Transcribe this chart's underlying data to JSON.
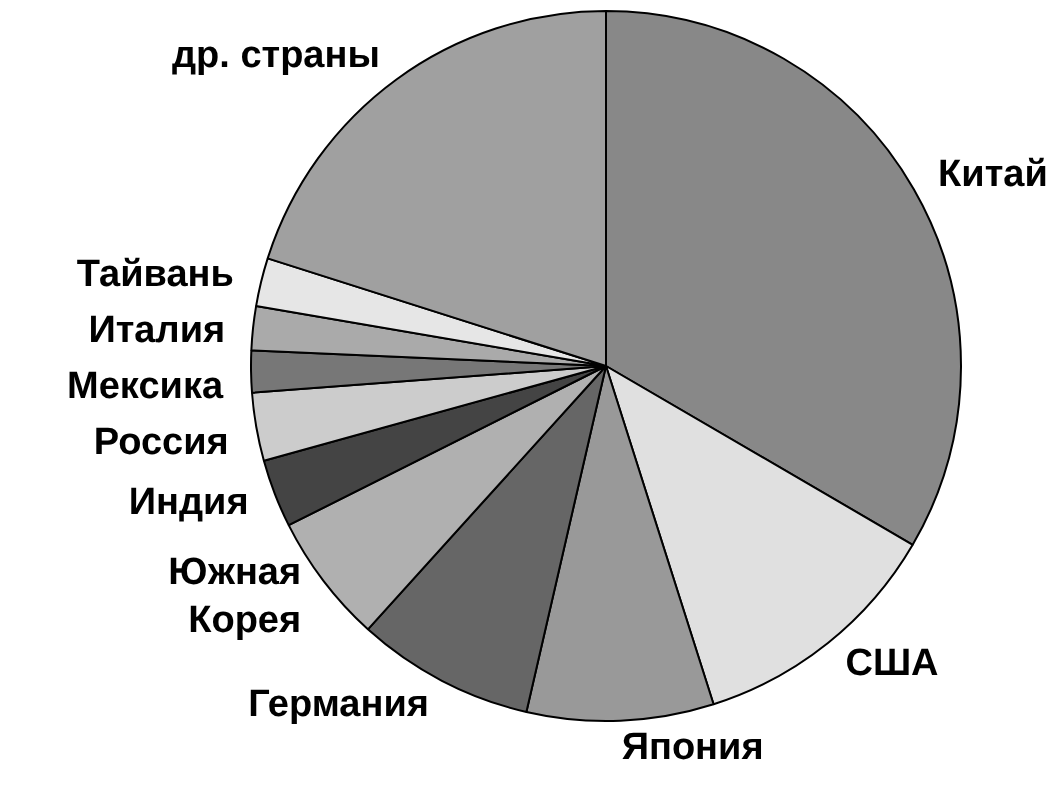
{
  "chart_data": {
    "type": "pie",
    "categories": [
      "Китай",
      "США",
      "Япония",
      "Германия",
      "Южная Корея",
      "Индия",
      "Россия",
      "Мексика",
      "Италия",
      "Тайвань",
      "др. страны"
    ],
    "values": [
      33.4,
      11.7,
      8.5,
      8.1,
      5.9,
      3.1,
      3.1,
      1.9,
      2.0,
      2.2,
      20.1
    ],
    "colors": [
      "#888888",
      "#e0e0e0",
      "#999999",
      "#666666",
      "#b0b0b0",
      "#444444",
      "#cccccc",
      "#777777",
      "#aaaaaa",
      "#e6e6e6",
      "#a0a0a0"
    ],
    "legend": false
  }
}
